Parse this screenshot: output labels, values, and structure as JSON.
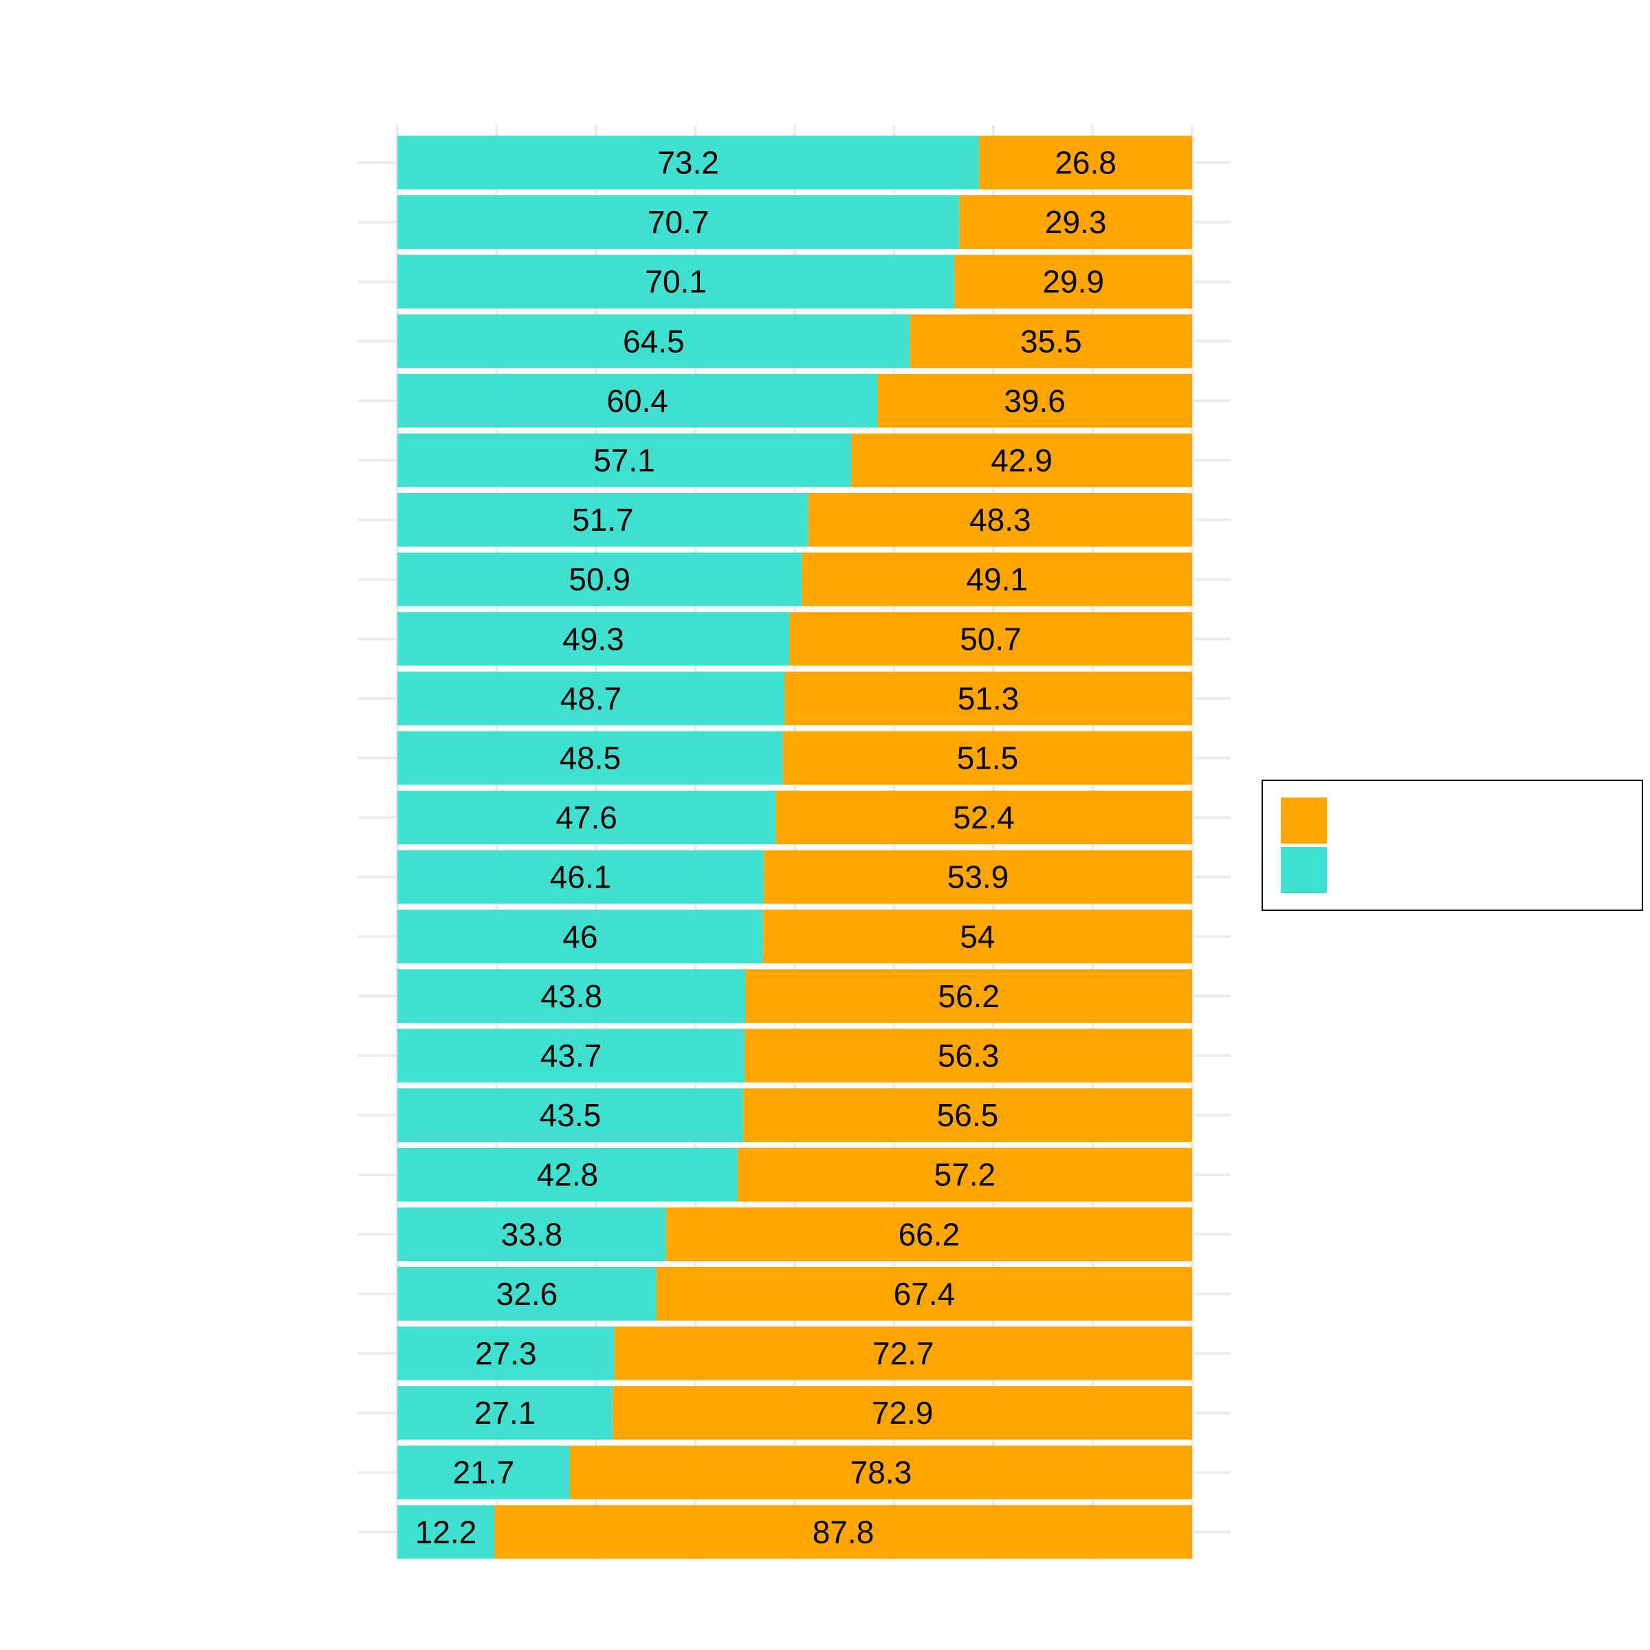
{
  "chart_data": {
    "type": "bar",
    "orientation": "horizontal",
    "stacked": true,
    "title": "",
    "xlabel": "",
    "ylabel": "",
    "xlim": [
      0,
      100
    ],
    "grid": true,
    "legend": {
      "position": "right",
      "entries": [
        "",
        ""
      ]
    },
    "categories": [
      "",
      "",
      "",
      "",
      "",
      "",
      "",
      "",
      "",
      "",
      "",
      "",
      "",
      "",
      "",
      "",
      "",
      "",
      "",
      "",
      "",
      "",
      "",
      ""
    ],
    "series": [
      {
        "color": "#40e0d0",
        "values": [
          73.2,
          70.7,
          70.1,
          64.5,
          60.4,
          57.1,
          51.7,
          50.9,
          49.3,
          48.7,
          48.5,
          47.6,
          46.1,
          46,
          43.8,
          43.7,
          43.5,
          42.8,
          33.8,
          32.6,
          27.3,
          27.1,
          21.7,
          12.2
        ],
        "labels": [
          "73.2",
          "70.7",
          "70.1",
          "64.5",
          "60.4",
          "57.1",
          "51.7",
          "50.9",
          "49.3",
          "48.7",
          "48.5",
          "47.6",
          "46.1",
          "46",
          "43.8",
          "43.7",
          "43.5",
          "42.8",
          "33.8",
          "32.6",
          "27.3",
          "27.1",
          "21.7",
          "12.2"
        ]
      },
      {
        "color": "#ffa500",
        "values": [
          26.8,
          29.3,
          29.9,
          35.5,
          39.6,
          42.9,
          48.3,
          49.1,
          50.7,
          51.3,
          51.5,
          52.4,
          53.9,
          54,
          56.2,
          56.3,
          56.5,
          57.2,
          66.2,
          67.4,
          72.7,
          72.9,
          78.3,
          87.8
        ],
        "labels": [
          "26.8",
          "29.3",
          "29.9",
          "35.5",
          "39.6",
          "42.9",
          "48.3",
          "49.1",
          "50.7",
          "51.3",
          "51.5",
          "52.4",
          "53.9",
          "54",
          "56.2",
          "56.3",
          "56.5",
          "57.2",
          "66.2",
          "67.4",
          "72.7",
          "72.9",
          "78.3",
          "87.8"
        ]
      }
    ]
  }
}
